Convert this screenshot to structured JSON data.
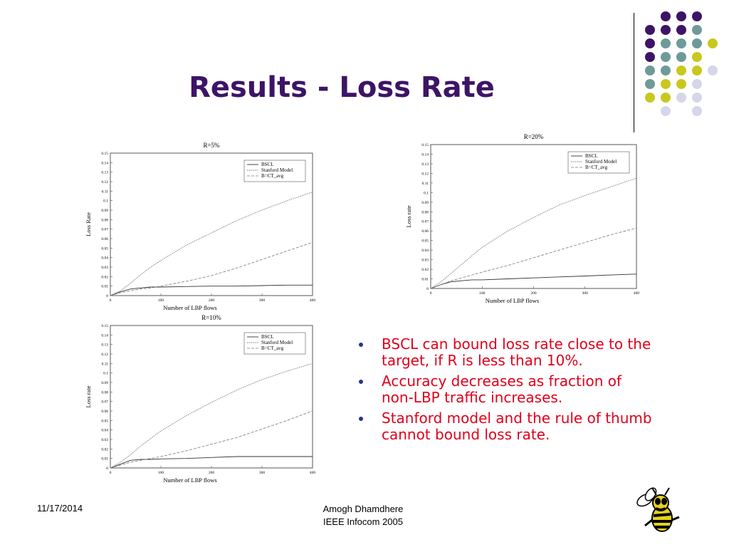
{
  "slide": {
    "title": "Results - Loss Rate",
    "bullets": [
      "BSCL can bound loss rate close to the target, if R is less than 10%.",
      "Accuracy decreases as fraction of non-LBP traffic increases.",
      "Stanford model and the rule of thumb cannot bound loss rate."
    ],
    "footer_date": "11/17/2014",
    "footer_author": "Amogh Dhamdhere",
    "footer_venue": "IEEE Infocom 2005"
  },
  "colors": {
    "title": "#3d1466",
    "bullet_text": "#e0001b",
    "dot_purple": "#3d1466",
    "dot_teal": "#6e9a9a",
    "dot_yellow": "#c8c81e",
    "dot_lavender": "#d6d6ea"
  },
  "chart_data": [
    {
      "type": "line",
      "title": "R=5%",
      "xlabel": "Number of LBP flows",
      "ylabel": "Loss Rate",
      "xlim": [
        0,
        400
      ],
      "ylim": [
        0,
        0.15
      ],
      "xticks": [
        0,
        100,
        200,
        300,
        400
      ],
      "yticks": [
        0,
        0.01,
        0.02,
        0.03,
        0.04,
        0.05,
        0.06,
        0.07,
        0.08,
        0.09,
        0.1,
        0.11,
        0.12,
        0.13,
        0.14,
        0.15
      ],
      "legend_position": "top-right",
      "series": [
        {
          "name": "BSCL",
          "x": [
            0,
            20,
            40,
            60,
            80,
            100,
            150,
            200,
            250,
            300,
            350,
            400
          ],
          "y": [
            0,
            0.004,
            0.007,
            0.008,
            0.009,
            0.009,
            0.0095,
            0.01,
            0.01,
            0.0105,
            0.011,
            0.011
          ]
        },
        {
          "name": "Stanford Model",
          "x": [
            0,
            20,
            40,
            60,
            80,
            100,
            150,
            200,
            250,
            300,
            350,
            400
          ],
          "y": [
            0,
            0.005,
            0.013,
            0.022,
            0.03,
            0.037,
            0.053,
            0.066,
            0.079,
            0.09,
            0.1,
            0.109
          ]
        },
        {
          "name": "B=CT_avg",
          "x": [
            0,
            20,
            40,
            60,
            80,
            100,
            150,
            200,
            250,
            300,
            350,
            400
          ],
          "y": [
            0,
            0.003,
            0.005,
            0.007,
            0.008,
            0.01,
            0.015,
            0.021,
            0.029,
            0.038,
            0.047,
            0.056
          ]
        }
      ]
    },
    {
      "type": "line",
      "title": "R=20%",
      "xlabel": "Number of LBP flows",
      "ylabel": "Loss rate",
      "xlim": [
        0,
        400
      ],
      "ylim": [
        0,
        0.15
      ],
      "xticks": [
        0,
        100,
        200,
        300,
        400
      ],
      "yticks": [
        0,
        0.01,
        0.02,
        0.03,
        0.04,
        0.05,
        0.06,
        0.07,
        0.08,
        0.09,
        0.1,
        0.11,
        0.12,
        0.13,
        0.14,
        0.15
      ],
      "legend_position": "top-right",
      "series": [
        {
          "name": "BSCL",
          "x": [
            0,
            20,
            40,
            60,
            80,
            100,
            150,
            200,
            250,
            300,
            350,
            400
          ],
          "y": [
            0,
            0.004,
            0.007,
            0.008,
            0.009,
            0.009,
            0.01,
            0.011,
            0.012,
            0.013,
            0.014,
            0.015
          ]
        },
        {
          "name": "Stanford Model",
          "x": [
            0,
            20,
            40,
            60,
            80,
            100,
            150,
            200,
            250,
            300,
            350,
            400
          ],
          "y": [
            0,
            0.007,
            0.016,
            0.025,
            0.034,
            0.043,
            0.06,
            0.074,
            0.087,
            0.097,
            0.106,
            0.115
          ]
        },
        {
          "name": "B=CT_avg",
          "x": [
            0,
            20,
            40,
            60,
            80,
            100,
            150,
            200,
            250,
            300,
            350,
            400
          ],
          "y": [
            0,
            0.004,
            0.008,
            0.011,
            0.014,
            0.017,
            0.024,
            0.032,
            0.04,
            0.048,
            0.056,
            0.063
          ]
        }
      ]
    },
    {
      "type": "line",
      "title": "R=10%",
      "xlabel": "Number of LBP flows",
      "ylabel": "Loss rate",
      "xlim": [
        0,
        400
      ],
      "ylim": [
        0,
        0.15
      ],
      "xticks": [
        0,
        100,
        200,
        300,
        400
      ],
      "yticks": [
        0,
        0.01,
        0.02,
        0.03,
        0.04,
        0.05,
        0.06,
        0.07,
        0.08,
        0.09,
        0.1,
        0.11,
        0.12,
        0.13,
        0.14,
        0.15
      ],
      "legend_position": "top-right",
      "series": [
        {
          "name": "BSCL",
          "x": [
            0,
            20,
            40,
            60,
            80,
            100,
            150,
            200,
            250,
            300,
            350,
            400
          ],
          "y": [
            0,
            0.004,
            0.008,
            0.009,
            0.009,
            0.0095,
            0.01,
            0.011,
            0.012,
            0.012,
            0.012,
            0.012
          ]
        },
        {
          "name": "Stanford Model",
          "x": [
            0,
            20,
            40,
            60,
            80,
            100,
            150,
            200,
            250,
            300,
            350,
            400
          ],
          "y": [
            0,
            0.006,
            0.014,
            0.023,
            0.031,
            0.039,
            0.055,
            0.069,
            0.082,
            0.093,
            0.102,
            0.11
          ]
        },
        {
          "name": "B=CT_avg",
          "x": [
            0,
            20,
            40,
            60,
            80,
            100,
            150,
            200,
            250,
            300,
            350,
            400
          ],
          "y": [
            0,
            0.003,
            0.006,
            0.008,
            0.01,
            0.012,
            0.018,
            0.025,
            0.032,
            0.041,
            0.05,
            0.06
          ]
        }
      ]
    }
  ]
}
